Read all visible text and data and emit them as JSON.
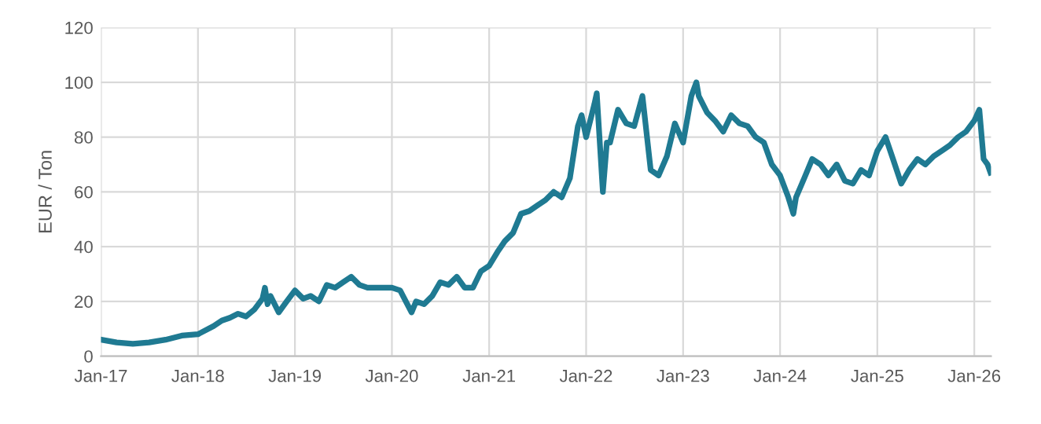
{
  "chart_data": {
    "type": "line",
    "ylabel": "EUR / Ton",
    "xlim": [
      "2017-01-01",
      "2026-03-05"
    ],
    "xticks": [
      {
        "value": "2017-01-01",
        "label": "Jan-17"
      },
      {
        "value": "2018-01-01",
        "label": "Jan-18"
      },
      {
        "value": "2019-01-01",
        "label": "Jan-19"
      },
      {
        "value": "2020-01-01",
        "label": "Jan-20"
      },
      {
        "value": "2021-01-01",
        "label": "Jan-21"
      },
      {
        "value": "2022-01-01",
        "label": "Jan-22"
      },
      {
        "value": "2023-01-01",
        "label": "Jan-23"
      },
      {
        "value": "2024-01-01",
        "label": "Jan-24"
      },
      {
        "value": "2025-01-01",
        "label": "Jan-25"
      },
      {
        "value": "2026-01-01",
        "label": "Jan-26"
      }
    ],
    "ylim": [
      0,
      120
    ],
    "yticks": [
      0,
      20,
      40,
      60,
      80,
      100,
      120
    ],
    "grid": true,
    "legend": false,
    "marker": "none",
    "line_style": "solid",
    "series": [
      {
        "color": "#1f7a92",
        "x": [
          "2017-01-02",
          "2017-03-01",
          "2017-05-01",
          "2017-07-01",
          "2017-09-01",
          "2017-11-01",
          "2018-01-01",
          "2018-03-01",
          "2018-04-01",
          "2018-05-01",
          "2018-06-01",
          "2018-07-01",
          "2018-08-01",
          "2018-09-01",
          "2018-09-10",
          "2018-09-20",
          "2018-10-01",
          "2018-11-01",
          "2018-12-01",
          "2019-01-01",
          "2019-02-01",
          "2019-03-01",
          "2019-04-01",
          "2019-05-01",
          "2019-06-01",
          "2019-07-01",
          "2019-08-01",
          "2019-09-01",
          "2019-10-01",
          "2019-11-01",
          "2019-12-01",
          "2020-01-01",
          "2020-02-01",
          "2020-03-15",
          "2020-04-01",
          "2020-05-01",
          "2020-06-01",
          "2020-07-01",
          "2020-08-01",
          "2020-09-01",
          "2020-10-01",
          "2020-11-01",
          "2020-12-01",
          "2021-01-01",
          "2021-02-01",
          "2021-03-01",
          "2021-04-01",
          "2021-05-01",
          "2021-06-01",
          "2021-07-01",
          "2021-08-01",
          "2021-09-01",
          "2021-10-01",
          "2021-11-01",
          "2021-12-01",
          "2021-12-15",
          "2022-01-01",
          "2022-02-01",
          "2022-02-10",
          "2022-03-05",
          "2022-03-20",
          "2022-04-01",
          "2022-05-01",
          "2022-06-01",
          "2022-07-01",
          "2022-08-01",
          "2022-09-01",
          "2022-10-01",
          "2022-11-01",
          "2022-12-01",
          "2023-01-01",
          "2023-02-01",
          "2023-02-20",
          "2023-03-01",
          "2023-04-01",
          "2023-05-01",
          "2023-06-01",
          "2023-07-01",
          "2023-08-01",
          "2023-09-01",
          "2023-10-01",
          "2023-11-01",
          "2023-12-01",
          "2024-01-01",
          "2024-02-01",
          "2024-02-20",
          "2024-03-01",
          "2024-04-01",
          "2024-05-01",
          "2024-06-01",
          "2024-07-01",
          "2024-08-01",
          "2024-09-01",
          "2024-10-01",
          "2024-11-01",
          "2024-12-01",
          "2025-01-01",
          "2025-02-01",
          "2025-03-01",
          "2025-04-01",
          "2025-05-01",
          "2025-06-01",
          "2025-07-01",
          "2025-08-01",
          "2025-09-01",
          "2025-10-01",
          "2025-11-01",
          "2025-12-01",
          "2026-01-01",
          "2026-01-20",
          "2026-02-05",
          "2026-02-20",
          "2026-03-03"
        ],
        "values": [
          6,
          5,
          4.5,
          5,
          6,
          7.5,
          8,
          11,
          13,
          14,
          15.5,
          14.5,
          17,
          21,
          25,
          19,
          22,
          16,
          20,
          24,
          21,
          22,
          20,
          26,
          25,
          27,
          29,
          26,
          25,
          25,
          25,
          25,
          24,
          16,
          20,
          19,
          22,
          27,
          26,
          29,
          25,
          25,
          31,
          33,
          38,
          42,
          45,
          52,
          53,
          55,
          57,
          60,
          58,
          65,
          84,
          88,
          80,
          92,
          96,
          60,
          78,
          78,
          90,
          85,
          84,
          95,
          68,
          66,
          73,
          85,
          78,
          95,
          100,
          95,
          89,
          86,
          82,
          88,
          85,
          84,
          80,
          78,
          70,
          66,
          58,
          52,
          58,
          65,
          72,
          70,
          66,
          70,
          64,
          63,
          68,
          66,
          75,
          80,
          72,
          63,
          68,
          72,
          70,
          73,
          75,
          77,
          80,
          82,
          86,
          90,
          72,
          70,
          67
        ]
      }
    ]
  }
}
